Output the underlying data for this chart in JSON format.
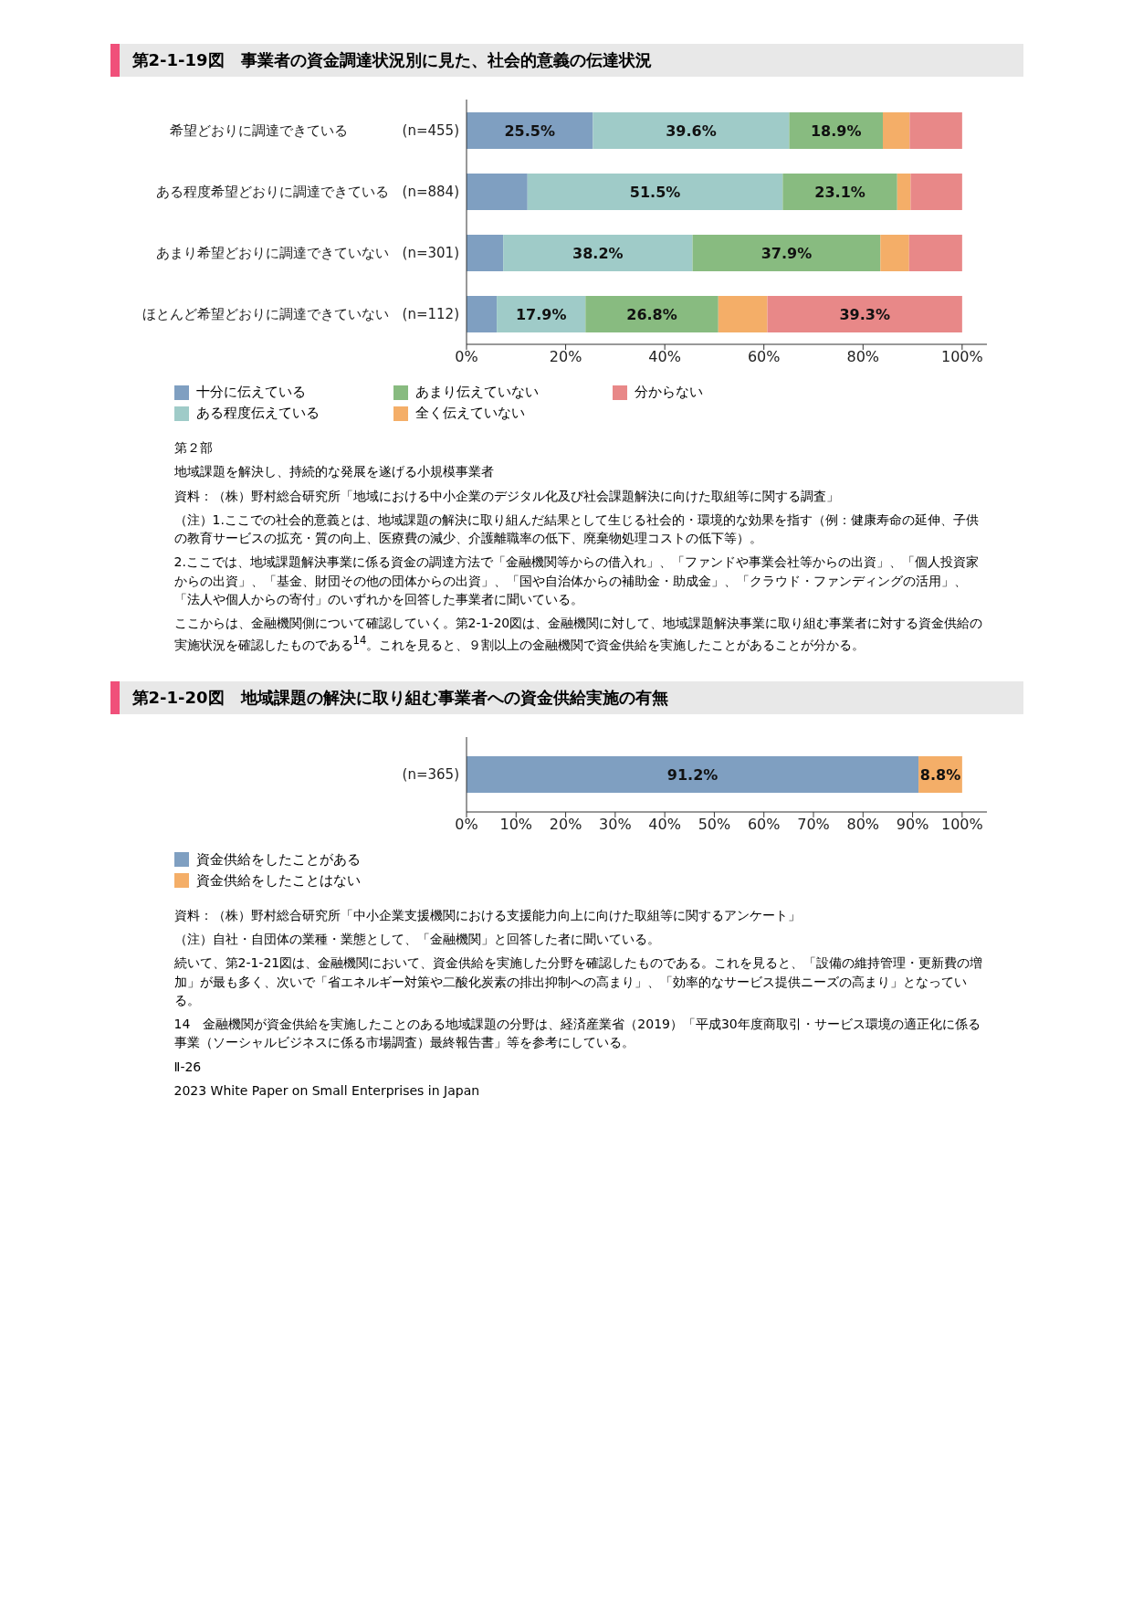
{
  "chart_data": [
    {
      "type": "bar",
      "orientation": "horizontal",
      "stacked": true,
      "title": "第2-1-19図　事業者の資金調達状況別に見た、社会的意義の伝達状況",
      "categories": [
        "希望どおりに調達できている　　　　(n=455)",
        "ある程度希望どおりに調達できている　(n=884)",
        "あまり希望どおりに調達できていない　(n=301)",
        "ほとんど希望どおりに調達できていない　(n=112)"
      ],
      "series": [
        {
          "name": "十分に伝えている",
          "color": "#7f9fc1",
          "values": [
            25.5,
            12.3,
            7.4,
            6.1
          ],
          "value_labels": [
            "25.5%",
            null,
            null,
            null
          ]
        },
        {
          "name": "ある程度伝えている",
          "color": "#9fcbc8",
          "values": [
            39.6,
            51.5,
            38.2,
            17.9
          ],
          "value_labels": [
            "39.6%",
            "51.5%",
            "38.2%",
            "17.9%"
          ]
        },
        {
          "name": "あまり伝えていない",
          "color": "#88bb80",
          "values": [
            18.9,
            23.1,
            37.9,
            26.8
          ],
          "value_labels": [
            "18.9%",
            "23.1%",
            "37.9%",
            "26.8%"
          ]
        },
        {
          "name": "全く伝えていない",
          "color": "#f4ae68",
          "values": [
            5.4,
            2.7,
            5.8,
            9.9
          ],
          "value_labels": [
            null,
            null,
            null,
            null
          ]
        },
        {
          "name": "分からない",
          "color": "#e88888",
          "values": [
            10.6,
            10.4,
            10.7,
            39.3
          ],
          "value_labels": [
            null,
            null,
            null,
            "39.3%"
          ]
        }
      ],
      "xlim": [
        0,
        105
      ],
      "xticks": [
        {
          "value": 0,
          "label": "0%"
        },
        {
          "value": 20,
          "label": "20%"
        },
        {
          "value": 40,
          "label": "40%"
        },
        {
          "value": 60,
          "label": "60%"
        },
        {
          "value": 80,
          "label": "80%"
        },
        {
          "value": 100,
          "label": "100%"
        }
      ],
      "legend": "bottom",
      "annotations": [
        "第２部",
        "地域課題を解決し、持続的な発展を遂げる小規模事業者",
        "資料：（株）野村総合研究所「地域における中小企業のデジタル化及び社会課題解決に向けた取組等に関する調査」",
        "（注）1.ここでの社会的意義とは、地域課題の解決に取り組んだ結果として生じる社会的・環境的な効果を指す（例：健康寿命の延伸、子供の教育サービスの拡充・質の向上、医療費の減少、介護離職率の低下、廃棄物処理コストの低下等）。",
        "2.ここでは、地域課題解決事業に係る資金の調達方法で「金融機関等からの借入れ」、「ファンドや事業会社等からの出資」、「個人投資家からの出資」、「基金、財団その他の団体からの出資」、「国や自治体からの補助金・助成金」、「クラウド・ファンディングの活用」、「法人や個人からの寄付」のいずれかを回答した事業者に聞いている。",
        "ここからは、金融機関側について確認していく。第2-1-20図は、金融機関に対して、地域課題解決事業に取り組む事業者に対する資金供給の実施状況を確認したものである$^{14}$。これを見ると、９割以上の金融機関で資金供給を実施したことがあることが分かる。"
      ]
    },
    {
      "type": "bar",
      "orientation": "horizontal",
      "stacked": true,
      "title": "第2-1-20図　地域課題の解決に取り組む事業者への資金供給実施の有無",
      "categories": [
        "(n=365)"
      ],
      "series": [
        {
          "name": "資金供給をしたことがある",
          "color": "#7f9fc1",
          "values": [
            91.2
          ],
          "value_labels": [
            "91.2%"
          ]
        },
        {
          "name": "資金供給をしたことはない",
          "color": "#f4ae68",
          "values": [
            8.8
          ],
          "value_labels": [
            "8.8%"
          ]
        }
      ],
      "xlim": [
        0,
        105
      ],
      "xticks": [
        {
          "value": 0,
          "label": "0%"
        },
        {
          "value": 10,
          "label": "10%"
        },
        {
          "value": 20,
          "label": "20%"
        },
        {
          "value": 30,
          "label": "30%"
        },
        {
          "value": 40,
          "label": "40%"
        },
        {
          "value": 50,
          "label": "50%"
        },
        {
          "value": 60,
          "label": "60%"
        },
        {
          "value": 70,
          "label": "70%"
        },
        {
          "value": 80,
          "label": "80%"
        },
        {
          "value": 90,
          "label": "90%"
        },
        {
          "value": 100,
          "label": "100%"
        }
      ],
      "legend": "bottom",
      "annotations": [
        "資料：（株）野村総合研究所「中小企業支援機関における支援能力向上に向けた取組等に関するアンケート」",
        "（注）自社・自団体の業種・業態として、「金融機関」と回答した者に聞いている。",
        "続いて、第2-1-21図は、金融機関において、資金供給を実施した分野を確認したものである。これを見ると、「設備の維持管理・更新費の増加」が最も多く、次いで「省エネルギー対策や二酸化炭素の排出抑制への高まり」、「効率的なサービス提供ニーズの高まり」となっている。",
        "14　金融機関が資金供給を実施したことのある地域課題の分野は、経済産業省（2019）「平成30年度商取引・サービス環境の適正化に係る事業（ソーシャルビジネスに係る市場調査）最終報告書」等を参考にしている。",
        "Ⅱ-26",
        "2023 White Paper on Small Enterprises in Japan"
      ]
    }
  ]
}
